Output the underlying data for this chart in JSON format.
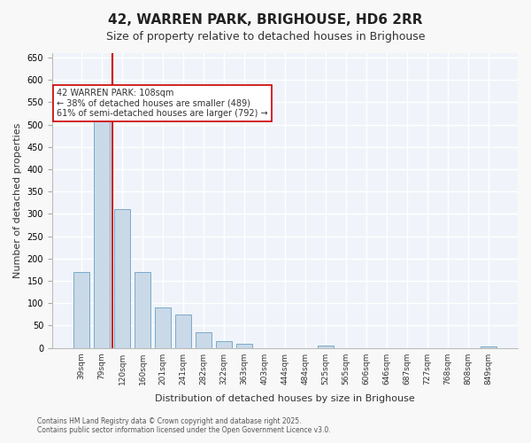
{
  "title": "42, WARREN PARK, BRIGHOUSE, HD6 2RR",
  "subtitle": "Size of property relative to detached houses in Brighouse",
  "xlabel": "Distribution of detached houses by size in Brighouse",
  "ylabel": "Number of detached properties",
  "bar_color": "#c9d9e8",
  "bar_edge_color": "#7aaac8",
  "background_color": "#f0f4fa",
  "grid_color": "#ffffff",
  "categories": [
    "39sqm",
    "79sqm",
    "120sqm",
    "160sqm",
    "201sqm",
    "241sqm",
    "282sqm",
    "322sqm",
    "363sqm",
    "403sqm",
    "444sqm",
    "484sqm",
    "525sqm",
    "565sqm",
    "606sqm",
    "646sqm",
    "687sqm",
    "727sqm",
    "768sqm",
    "808sqm",
    "849sqm"
  ],
  "values": [
    170,
    510,
    310,
    170,
    90,
    75,
    35,
    15,
    10,
    0,
    0,
    0,
    5,
    0,
    0,
    0,
    0,
    0,
    0,
    0,
    3
  ],
  "ylim": [
    0,
    660
  ],
  "yticks": [
    0,
    50,
    100,
    150,
    200,
    250,
    300,
    350,
    400,
    450,
    500,
    550,
    600,
    650
  ],
  "property_size_sqm": 108,
  "property_bin_index": 2,
  "annotation_title": "42 WARREN PARK: 108sqm",
  "annotation_line1": "← 38% of detached houses are smaller (489)",
  "annotation_line2": "61% of semi-detached houses are larger (792) →",
  "red_line_color": "#cc0000",
  "annotation_box_color": "#ffffff",
  "annotation_box_edge": "#cc0000",
  "footer_line1": "Contains HM Land Registry data © Crown copyright and database right 2025.",
  "footer_line2": "Contains public sector information licensed under the Open Government Licence v3.0."
}
